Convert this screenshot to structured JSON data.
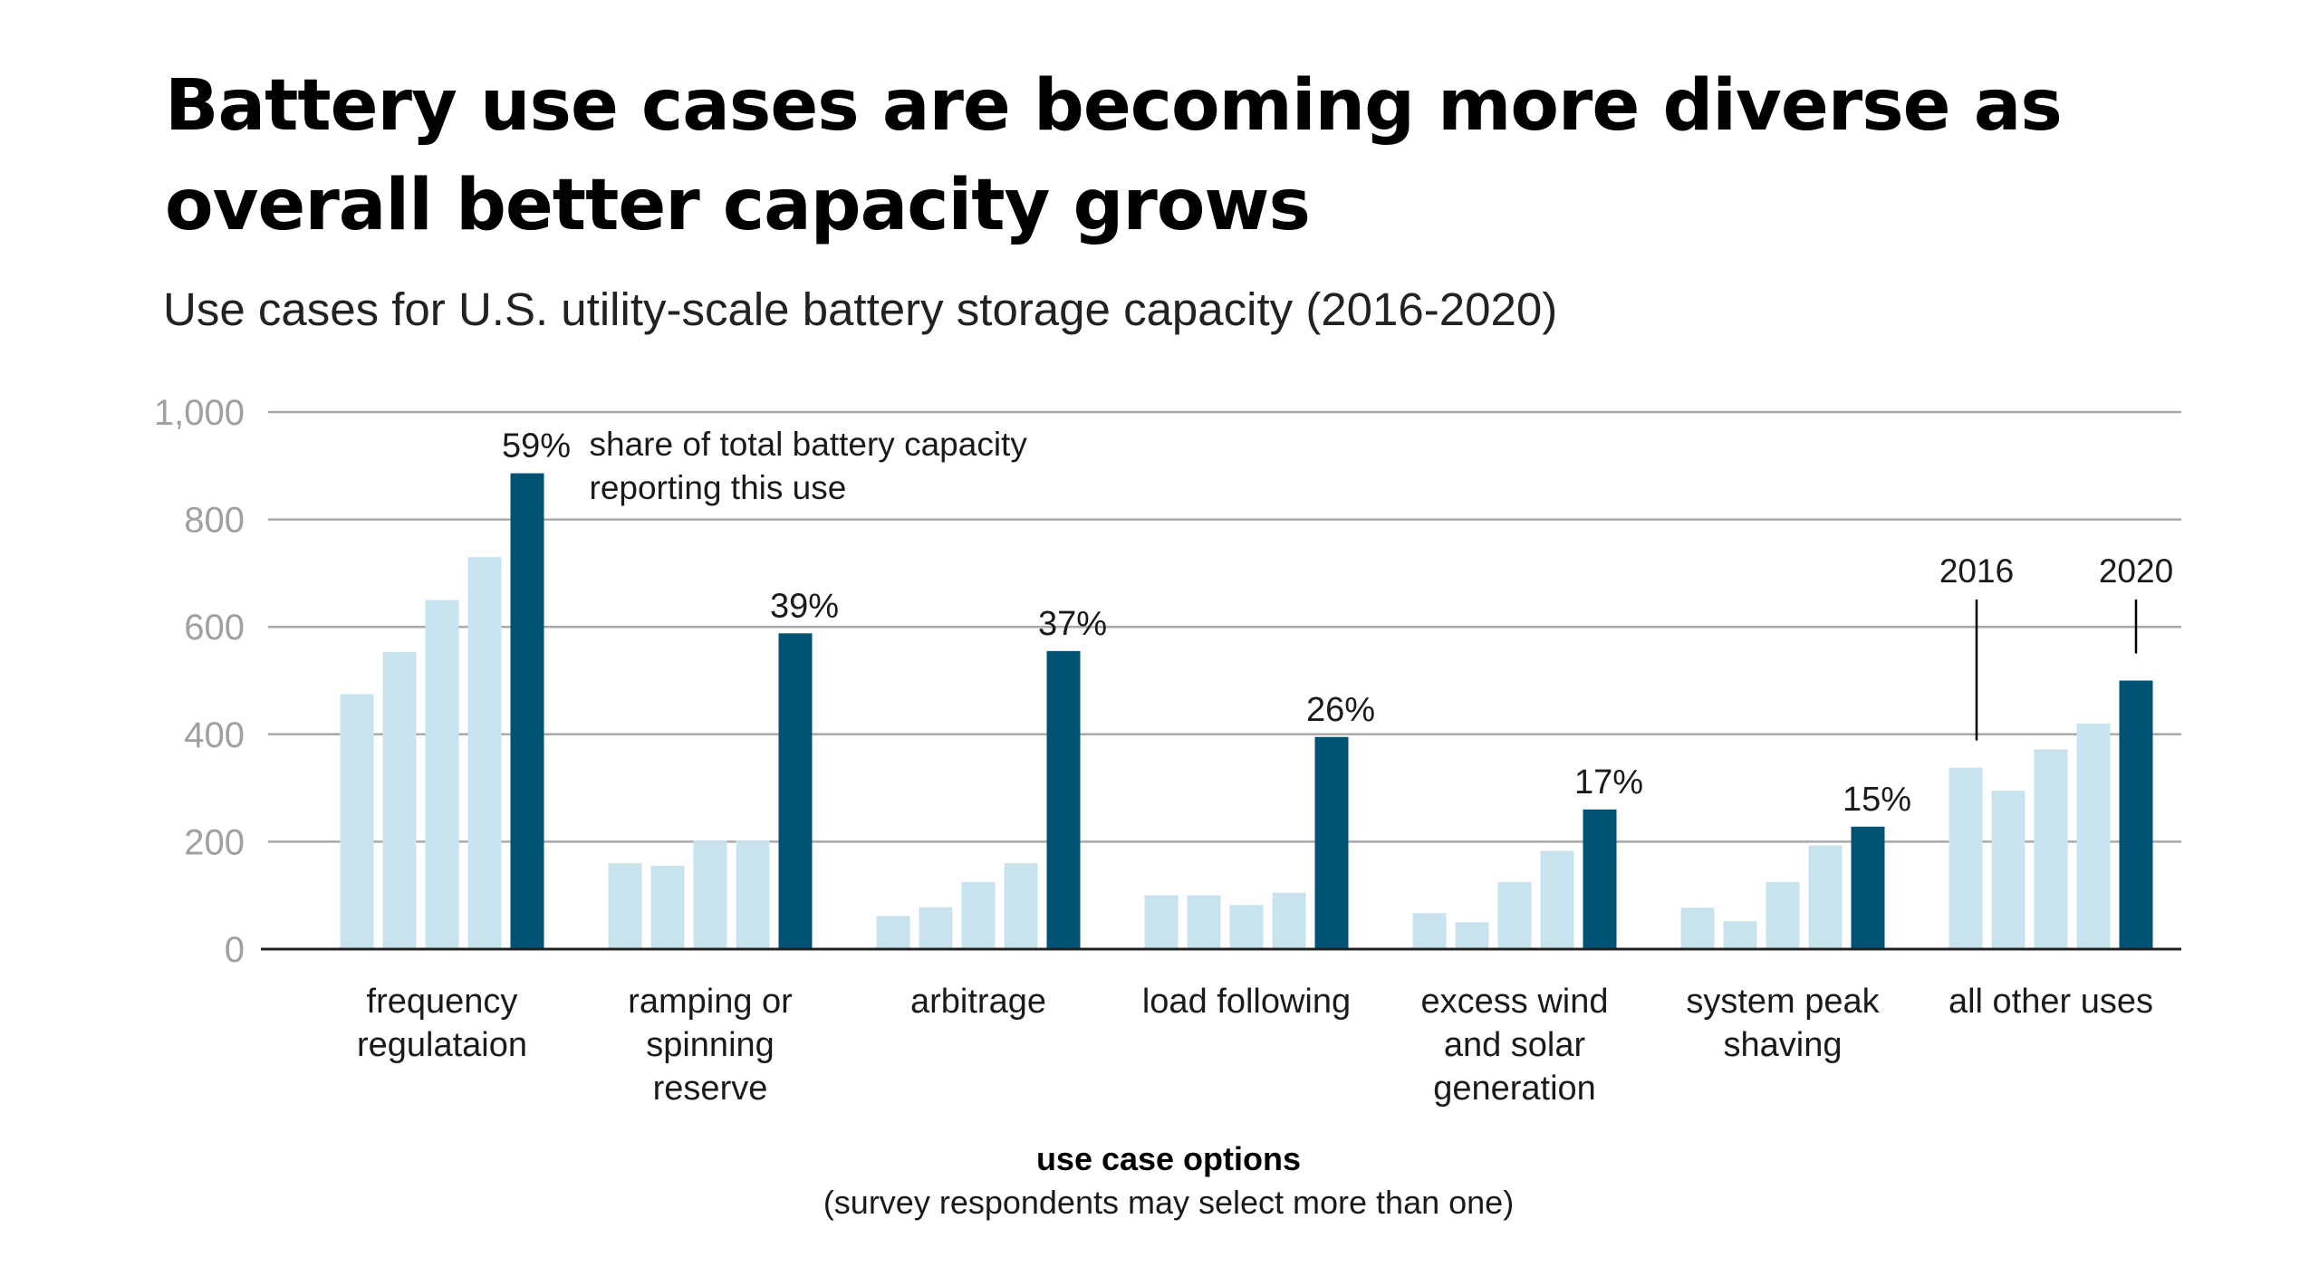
{
  "title": "Battery use cases are becoming more diverse as overall better capacity grows",
  "subtitle": "Use cases for U.S. utility-scale battery storage capacity (2016-2020)",
  "chart_data": {
    "type": "bar",
    "title": "Battery use cases are becoming more diverse as overall better capacity grows",
    "subtitle": "Use cases for U.S. utility-scale battery storage capacity (2016-2020)",
    "xlabel": "use case options",
    "xlabel_note": "(survey respondents may select more than one)",
    "ylabel": "",
    "ylim": [
      0,
      1000
    ],
    "yticks": [
      0,
      200,
      400,
      600,
      800,
      1000
    ],
    "ytick_labels": [
      "0",
      "200",
      "400",
      "600",
      "800",
      "1,000"
    ],
    "grid": true,
    "colors": {
      "2016": "#c9e3ee",
      "2017": "#c9e3ee",
      "2018": "#c9e3ee",
      "2019": "#c9e3ee",
      "2020": "#005274"
    },
    "categories": [
      [
        "frequency",
        "regulataion"
      ],
      [
        "ramping or",
        "spinning",
        "reserve"
      ],
      [
        "arbitrage"
      ],
      [
        "load following"
      ],
      [
        "excess wind",
        "and solar",
        "generation"
      ],
      [
        "system peak",
        "shaving"
      ],
      [
        "all other uses"
      ]
    ],
    "series": [
      {
        "name": "2016",
        "values": [
          475,
          160,
          62,
          100,
          67,
          77,
          338
        ]
      },
      {
        "name": "2017",
        "values": [
          553,
          155,
          78,
          100,
          50,
          52,
          295
        ]
      },
      {
        "name": "2018",
        "values": [
          650,
          202,
          125,
          82,
          125,
          125,
          372
        ]
      },
      {
        "name": "2019",
        "values": [
          730,
          202,
          160,
          105,
          183,
          193,
          420
        ]
      },
      {
        "name": "2020",
        "values": [
          886,
          588,
          555,
          395,
          260,
          228,
          500
        ]
      }
    ],
    "share_labels": [
      "59%",
      "39%",
      "37%",
      "26%",
      "17%",
      "15%",
      ""
    ],
    "annotations": {
      "share_note": [
        "share of total battery capacity",
        "reporting this use"
      ],
      "first_year": "2016",
      "last_year": "2020"
    }
  }
}
